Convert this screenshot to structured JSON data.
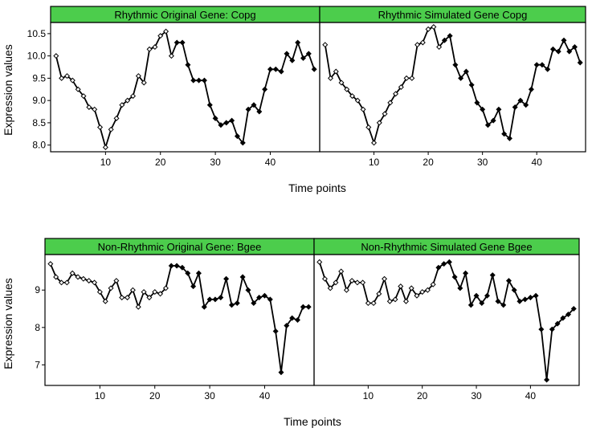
{
  "chart_data": [
    {
      "type": "line",
      "group": "top",
      "title": "Rhythmic Original Gene: Copg",
      "xlabel": "Time points",
      "ylabel": "Expression values",
      "xlim": [
        0,
        49
      ],
      "ylim": [
        7.85,
        10.75
      ],
      "yticks": [
        8.0,
        8.5,
        9.0,
        9.5,
        10.0,
        10.5
      ],
      "xticks": [
        10,
        20,
        30,
        40
      ],
      "x": [
        1,
        2,
        3,
        4,
        5,
        6,
        7,
        8,
        9,
        10,
        11,
        12,
        13,
        14,
        15,
        16,
        17,
        18,
        19,
        20,
        21,
        22,
        23,
        24,
        25,
        26,
        27,
        28,
        29,
        30,
        31,
        32,
        33,
        34,
        35,
        36,
        37,
        38,
        39,
        40,
        41,
        42,
        43,
        44,
        45,
        46,
        47,
        48
      ],
      "values": [
        10.0,
        9.5,
        9.55,
        9.45,
        9.25,
        9.1,
        8.85,
        8.8,
        8.4,
        7.95,
        8.35,
        8.6,
        8.9,
        9.0,
        9.1,
        9.55,
        9.4,
        10.15,
        10.2,
        10.45,
        10.55,
        10.0,
        10.3,
        10.3,
        9.8,
        9.45,
        9.45,
        9.45,
        8.9,
        8.6,
        8.45,
        8.5,
        8.55,
        8.2,
        8.05,
        8.8,
        8.9,
        8.75,
        9.25,
        9.7,
        9.7,
        9.65,
        10.05,
        9.9,
        10.3,
        9.95,
        10.05,
        9.7
      ]
    },
    {
      "type": "line",
      "group": "top",
      "title": "Rhythmic Simulated Gene Copg",
      "xlabel": "Time points",
      "ylabel": "Expression values",
      "xlim": [
        0,
        49
      ],
      "ylim": [
        7.85,
        10.75
      ],
      "xticks": [
        10,
        20,
        30,
        40
      ],
      "x": [
        1,
        2,
        3,
        4,
        5,
        6,
        7,
        8,
        9,
        10,
        11,
        12,
        13,
        14,
        15,
        16,
        17,
        18,
        19,
        20,
        21,
        22,
        23,
        24,
        25,
        26,
        27,
        28,
        29,
        30,
        31,
        32,
        33,
        34,
        35,
        36,
        37,
        38,
        39,
        40,
        41,
        42,
        43,
        44,
        45,
        46,
        47,
        48
      ],
      "values": [
        10.25,
        9.5,
        9.65,
        9.4,
        9.25,
        9.1,
        9.0,
        8.8,
        8.4,
        8.05,
        8.5,
        8.7,
        8.95,
        9.15,
        9.3,
        9.5,
        9.5,
        10.25,
        10.3,
        10.6,
        10.65,
        10.2,
        10.35,
        10.45,
        9.8,
        9.5,
        9.65,
        9.35,
        8.95,
        8.8,
        8.45,
        8.55,
        8.8,
        8.25,
        8.15,
        8.85,
        9.0,
        8.9,
        9.25,
        9.8,
        9.8,
        9.7,
        10.15,
        10.1,
        10.35,
        10.1,
        10.2,
        9.85
      ]
    },
    {
      "type": "line",
      "group": "bottom",
      "title": "Non-Rhythmic Original Gene: Bgee",
      "xlabel": "Time points",
      "ylabel": "Expression values",
      "xlim": [
        0,
        49
      ],
      "ylim": [
        6.45,
        9.95
      ],
      "yticks": [
        7,
        8,
        9
      ],
      "xticks": [
        10,
        20,
        30,
        40
      ],
      "x": [
        1,
        2,
        3,
        4,
        5,
        6,
        7,
        8,
        9,
        10,
        11,
        12,
        13,
        14,
        15,
        16,
        17,
        18,
        19,
        20,
        21,
        22,
        23,
        24,
        25,
        26,
        27,
        28,
        29,
        30,
        31,
        32,
        33,
        34,
        35,
        36,
        37,
        38,
        39,
        40,
        41,
        42,
        43,
        44,
        45,
        46,
        47,
        48
      ],
      "values": [
        9.7,
        9.35,
        9.2,
        9.2,
        9.45,
        9.35,
        9.3,
        9.25,
        9.2,
        8.95,
        8.7,
        9.05,
        9.25,
        8.8,
        8.8,
        9.0,
        8.55,
        8.95,
        8.8,
        8.95,
        8.9,
        9.05,
        9.65,
        9.65,
        9.6,
        9.45,
        9.1,
        9.45,
        8.55,
        8.75,
        8.75,
        8.8,
        9.3,
        8.6,
        8.65,
        9.35,
        9.0,
        8.65,
        8.8,
        8.85,
        8.75,
        7.9,
        6.8,
        8.05,
        8.25,
        8.2,
        8.55,
        8.55
      ]
    },
    {
      "type": "line",
      "group": "bottom",
      "title": "Non-Rhythmic Simulated Gene Bgee",
      "xlabel": "Time points",
      "ylabel": "Expression values",
      "xlim": [
        0,
        49
      ],
      "ylim": [
        6.45,
        9.95
      ],
      "xticks": [
        10,
        20,
        30,
        40
      ],
      "x": [
        1,
        2,
        3,
        4,
        5,
        6,
        7,
        8,
        9,
        10,
        11,
        12,
        13,
        14,
        15,
        16,
        17,
        18,
        19,
        20,
        21,
        22,
        23,
        24,
        25,
        26,
        27,
        28,
        29,
        30,
        31,
        32,
        33,
        34,
        35,
        36,
        37,
        38,
        39,
        40,
        41,
        42,
        43,
        44,
        45,
        46,
        47,
        48
      ],
      "values": [
        9.75,
        9.3,
        9.05,
        9.2,
        9.5,
        9.0,
        9.25,
        9.2,
        9.2,
        8.65,
        8.65,
        8.9,
        9.3,
        8.7,
        8.75,
        9.1,
        8.7,
        9.05,
        8.85,
        8.95,
        9.0,
        9.15,
        9.6,
        9.7,
        9.75,
        9.35,
        9.05,
        9.45,
        8.6,
        8.85,
        8.65,
        8.85,
        9.4,
        8.7,
        8.6,
        9.25,
        9.0,
        8.7,
        8.75,
        8.8,
        8.85,
        7.95,
        6.6,
        7.95,
        8.1,
        8.25,
        8.35,
        8.5
      ]
    }
  ],
  "style": {
    "panel_header_color": "#4ccd4c",
    "line_color": "#000000",
    "marker_style": "open diamond then filled diamond"
  }
}
